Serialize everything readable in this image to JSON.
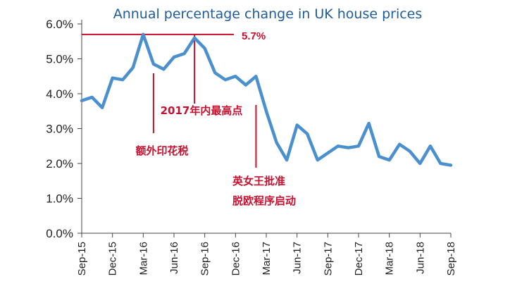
{
  "chart_data": {
    "type": "line",
    "title": "Annual percentage change in UK house prices",
    "xlabel": "",
    "ylabel": "",
    "ylim": [
      0,
      6
    ],
    "y_ticks": [
      "0.0%",
      "1.0%",
      "2.0%",
      "3.0%",
      "4.0%",
      "5.0%",
      "6.0%"
    ],
    "x_tick_labels": [
      "Sep-15",
      "Dec-15",
      "Mar-16",
      "Jun-16",
      "Sep-16",
      "Dec-16",
      "Mar-17",
      "Jun-17",
      "Sep-17",
      "Dec-17",
      "Mar-18",
      "Jun-18",
      "Sep-18"
    ],
    "x": [
      "Sep-15",
      "Oct-15",
      "Nov-15",
      "Dec-15",
      "Jan-16",
      "Feb-16",
      "Mar-16",
      "Apr-16",
      "May-16",
      "Jun-16",
      "Jul-16",
      "Aug-16",
      "Sep-16",
      "Oct-16",
      "Nov-16",
      "Dec-16",
      "Jan-17",
      "Feb-17",
      "Mar-17",
      "Apr-17",
      "May-17",
      "Jun-17",
      "Jul-17",
      "Aug-17",
      "Sep-17",
      "Oct-17",
      "Nov-17",
      "Dec-17",
      "Jan-18",
      "Feb-18",
      "Mar-18",
      "Apr-18",
      "May-18",
      "Jun-18",
      "Jul-18",
      "Aug-18",
      "Sep-18"
    ],
    "series": [
      {
        "name": "Annual percentage change in UK house prices",
        "color": "#4a90cf",
        "values": [
          3.8,
          3.9,
          3.6,
          4.45,
          4.4,
          4.75,
          5.7,
          4.85,
          4.7,
          5.05,
          5.15,
          5.6,
          5.3,
          4.6,
          4.4,
          4.5,
          4.25,
          4.5,
          3.5,
          2.6,
          2.1,
          3.1,
          2.85,
          2.1,
          2.3,
          2.5,
          2.45,
          2.5,
          3.15,
          2.2,
          2.1,
          2.55,
          2.35,
          2.0,
          2.5,
          2.0,
          1.95
        ]
      }
    ],
    "peak": {
      "label": "5.7%",
      "value": 5.7,
      "at": "Mar-16",
      "line_end": "Aug-16"
    },
    "annotations": [
      {
        "text": "额外印花税",
        "at": "Apr-16"
      },
      {
        "text": "2017年内最高点",
        "at": "Aug-16"
      },
      {
        "lines": [
          "英女王批准",
          "脱欧程序启动"
        ],
        "at": "Feb-17"
      }
    ],
    "colors": {
      "line": "#4a90cf",
      "annotation": "#c8102e",
      "title": "#1f5c99"
    }
  }
}
